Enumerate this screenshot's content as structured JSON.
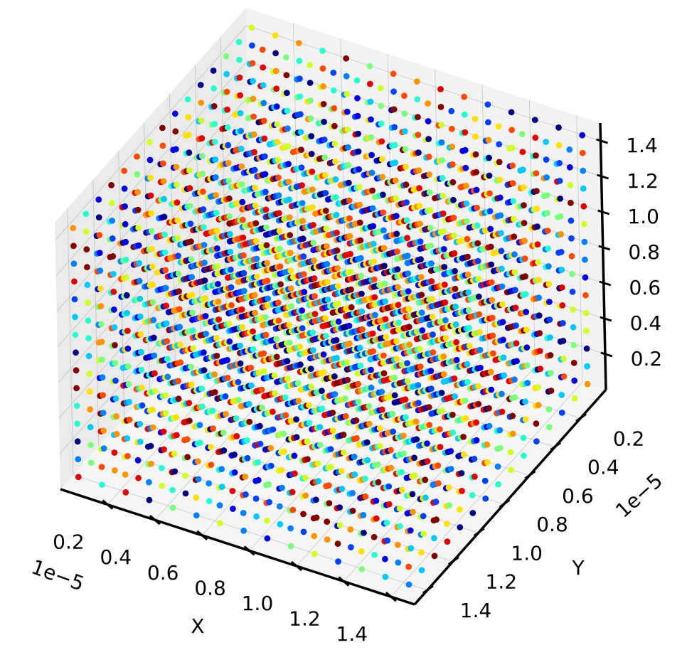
{
  "chart_data": {
    "type": "scatter",
    "subtype": "3d",
    "title": "",
    "xlabel": "X",
    "ylabel": "Y",
    "zlabel": "",
    "x_offset_text": "1e−5",
    "y_offset_text": "1e−5",
    "xlim": [
      0.0,
      1.5
    ],
    "ylim": [
      0.0,
      1.5
    ],
    "zlim": [
      0.0,
      1.5
    ],
    "x_ticks": [
      "0.2",
      "0.4",
      "0.6",
      "0.8",
      "1.0",
      "1.2",
      "1.4"
    ],
    "y_ticks": [
      "0.2",
      "0.4",
      "0.6",
      "0.8",
      "1.0",
      "1.2",
      "1.4"
    ],
    "z_ticks": [
      "0.2",
      "0.4",
      "0.6",
      "0.8",
      "1.0",
      "1.2",
      "1.4"
    ],
    "grid": true,
    "legend": "none",
    "colormap": "jet",
    "palette": [
      "#000080",
      "#0000e0",
      "#0040ff",
      "#0080ff",
      "#00c8ff",
      "#28ffd0",
      "#7cff7c",
      "#d0ff28",
      "#ffe000",
      "#ff9400",
      "#ff4a00",
      "#e00000",
      "#800000"
    ],
    "grid_points": {
      "description": "regular lattice of points filling the cube",
      "count_per_axis": 15,
      "spacing": 0.1,
      "start": 0.05
    }
  }
}
